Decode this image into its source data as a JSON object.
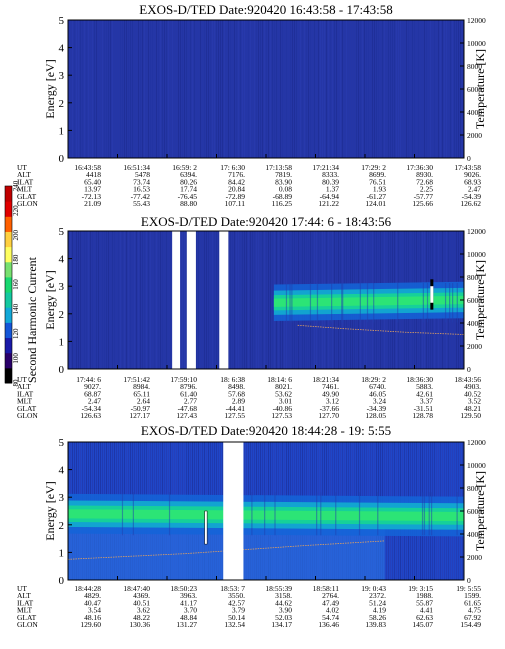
{
  "chart_data": [
    {
      "type": "heatmap",
      "title": "EXOS-D/TED   Date:920420   16:43:58 - 17:43:58",
      "ylabel": "Energy [eV]",
      "ylabel_right": "Temperature [K]",
      "ylim": [
        0,
        5
      ],
      "ylim_right": [
        0,
        12000
      ],
      "yticks": [
        "0",
        "1",
        "2",
        "3",
        "4",
        "5"
      ],
      "yticks_right": [
        "0",
        "2000",
        "4000",
        "6000",
        "8000",
        "10000",
        "12000"
      ],
      "band": null,
      "gaps": [],
      "orbit_labels": [
        "UT",
        "ALT",
        "ILAT",
        "MLT",
        "GLAT",
        "GLON"
      ],
      "columns": [
        [
          "16:43:58",
          "4418",
          "65.40",
          "13.97",
          "-72.13",
          "21.09"
        ],
        [
          "16:51:34",
          "5478",
          "73.74",
          "16.53",
          "-77.42",
          "55.43"
        ],
        [
          "16:59: 2",
          "6394.",
          "80.26",
          "17.74",
          "-76.45",
          "88.80"
        ],
        [
          "17: 6:30",
          "7176.",
          "84.42",
          "20.84",
          "-72.89",
          "107.11"
        ],
        [
          "17:13:58",
          "7819.",
          "83.90",
          "0.08",
          "-68.89",
          "116.25"
        ],
        [
          "17:21:34",
          "8333.",
          "80.39",
          "1.37",
          "-64.94",
          "121.22"
        ],
        [
          "17:29: 2",
          "8699.",
          "76.51",
          "1.93",
          "-61.27",
          "124.01"
        ],
        [
          "17:36:30",
          "8930.",
          "72.68",
          "2.25",
          "-57.77",
          "125.66"
        ],
        [
          "17:43:58",
          "9026.",
          "68.93",
          "2.47",
          "-54.39",
          "126.62"
        ]
      ]
    },
    {
      "type": "heatmap",
      "title": "EXOS-D/TED   Date:920420   17:44: 6 - 18:43:56",
      "ylabel": "Energy [eV]",
      "ylabel_right": "Temperature [K]",
      "ylim": [
        0,
        5
      ],
      "ylim_right": [
        0,
        12000
      ],
      "yticks": [
        "0",
        "1",
        "2",
        "3",
        "4",
        "5"
      ],
      "yticks_right": [
        "0",
        "2000",
        "4000",
        "6000",
        "8000",
        "10000",
        "12000"
      ],
      "band": {
        "start": 0.52,
        "center": [
          2.4,
          2.5
        ],
        "width": 0.55
      },
      "temperature_trace": {
        "x": [
          0.58,
          0.7,
          0.85,
          1.0
        ],
        "y": [
          3800,
          3500,
          3200,
          3000
        ]
      },
      "gaps": [
        [
          0.263,
          0.283
        ],
        [
          0.3,
          0.323
        ],
        [
          0.382,
          0.405
        ]
      ],
      "orbit_labels": [
        "UT",
        "ALT",
        "ILAT",
        "MLT",
        "GLAT",
        "GLON"
      ],
      "columns": [
        [
          "17:44: 6",
          "9027.",
          "68.87",
          "2.47",
          "-54.34",
          "126.63"
        ],
        [
          "17:51:42",
          "8984.",
          "65.11",
          "2.64",
          "-50.97",
          "127.17"
        ],
        [
          "17:59:10",
          "8796.",
          "61.40",
          "2.77",
          "-47.68",
          "127.43"
        ],
        [
          "18: 6:38",
          "8498.",
          "57.68",
          "2.89",
          "-44.41",
          "127.55"
        ],
        [
          "18:14: 6",
          "8021.",
          "53.62",
          "3.01",
          "-40.86",
          "127.53"
        ],
        [
          "18:21:34",
          "7461.",
          "49.90",
          "3.12",
          "-37.66",
          "127.70"
        ],
        [
          "18:29: 2",
          "6740.",
          "46.05",
          "3.24",
          "-34.39",
          "128.05"
        ],
        [
          "18:36:30",
          "5883.",
          "42.61",
          "3.37",
          "-31.51",
          "128.78"
        ],
        [
          "18:43:56",
          "4903.",
          "40.52",
          "3.52",
          "48.21",
          "129.50"
        ]
      ]
    },
    {
      "type": "heatmap",
      "title": "EXOS-D/TED   Date:920420   18:44:28 - 19: 5:55",
      "ylabel": "Energy [eV]",
      "ylabel_right": "Temperature [K]",
      "ylim": [
        0,
        5
      ],
      "ylim_right": [
        0,
        12000
      ],
      "yticks": [
        "0",
        "1",
        "2",
        "3",
        "4",
        "5"
      ],
      "yticks_right": [
        "0",
        "2000",
        "4000",
        "6000",
        "8000",
        "10000",
        "12000"
      ],
      "band": {
        "start": 0.0,
        "center": [
          2.4,
          2.3
        ],
        "width": 0.6
      },
      "temperature_trace": {
        "x": [
          0.0,
          0.3,
          0.6,
          0.8
        ],
        "y": [
          1800,
          2300,
          3000,
          3400
        ]
      },
      "gaps": [
        [
          0.392,
          0.443
        ]
      ],
      "orbit_labels": [
        "UT",
        "ALT",
        "ILAT",
        "MLT",
        "GLAT",
        "GLON"
      ],
      "columns": [
        [
          "18:44:28",
          "4829.",
          "40.47",
          "3.54",
          "48.16",
          "129.60"
        ],
        [
          "18:47:40",
          "4369.",
          "40.51",
          "3.62",
          "48.22",
          "130.36"
        ],
        [
          "18:50:23",
          "3963.",
          "41.17",
          "3.70",
          "48.84",
          "131.27"
        ],
        [
          "18:53: 7",
          "3550.",
          "42.57",
          "3.79",
          "50.14",
          "132.54"
        ],
        [
          "18:55:39",
          "3158.",
          "44.62",
          "3.90",
          "52.03",
          "134.17"
        ],
        [
          "18:58:11",
          "2764.",
          "47.49",
          "4.02",
          "54.74",
          "136.46"
        ],
        [
          "19: 0:43",
          "2372.",
          "51.24",
          "4.19",
          "58.26",
          "139.83"
        ],
        [
          "19: 3:15",
          "1988.",
          "55.87",
          "4.41",
          "62.63",
          "145.07"
        ],
        [
          "19: 5:55",
          "1599.",
          "61.65",
          "4.75",
          "67.92",
          "154.49"
        ]
      ]
    }
  ],
  "colorbar": {
    "label": "Second Harmonic Current",
    "ticks": [
      "80",
      "100",
      "120",
      "140",
      "160",
      "180",
      "200",
      "220",
      "240"
    ],
    "colors": [
      "#000000",
      "#2a006a",
      "#1a1aa8",
      "#1456d8",
      "#12a8d8",
      "#14c8a0",
      "#18d870",
      "#78e070",
      "#ffff60",
      "#ffd040",
      "#ff6000",
      "#e00000",
      "#c00000"
    ]
  }
}
